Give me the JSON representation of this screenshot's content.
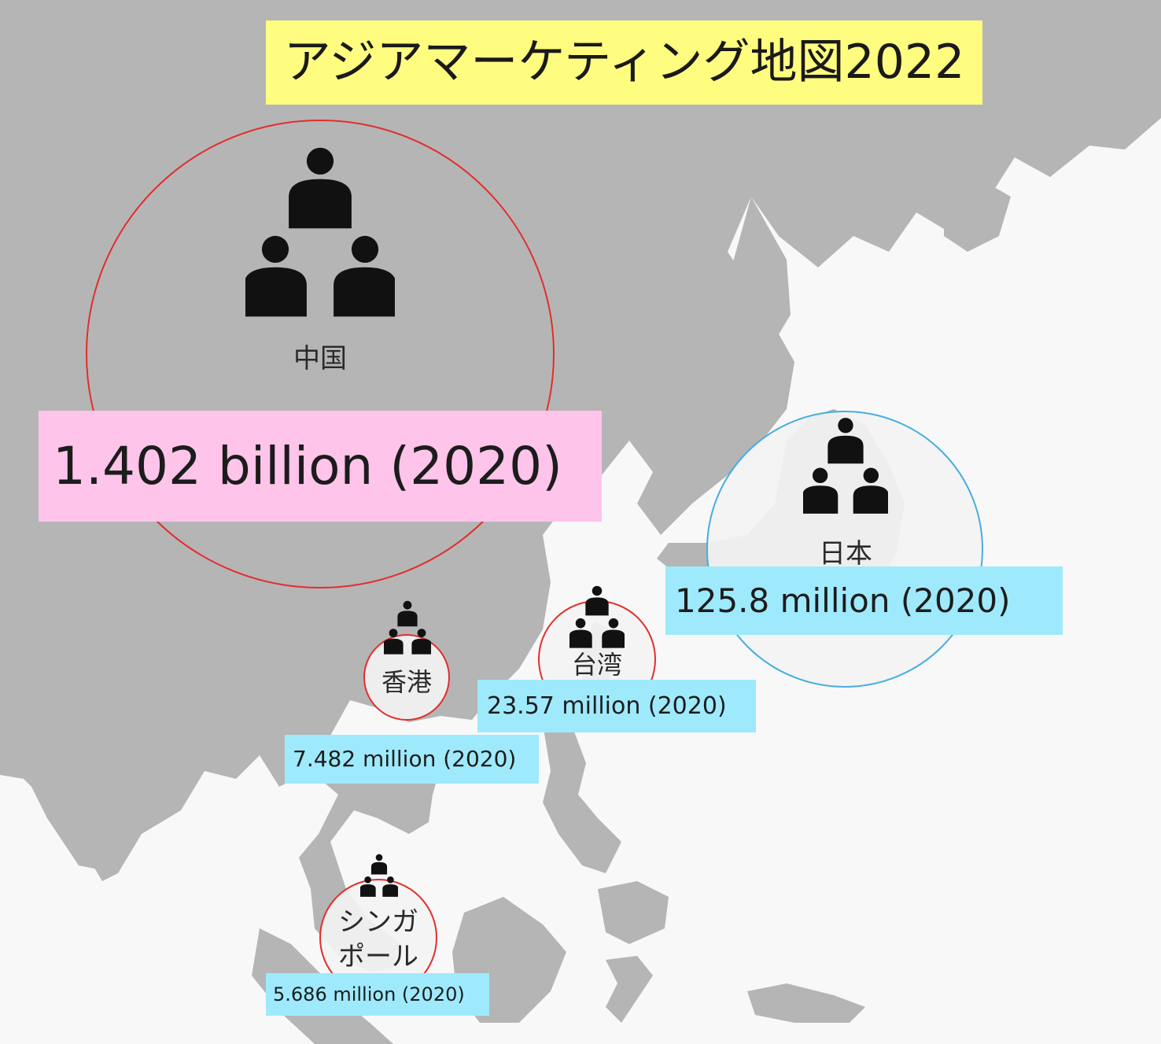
{
  "title": "アジアマーケティング地図2022",
  "icons": {
    "people": "three-people-icon",
    "region_shape": "landmass"
  },
  "colors": {
    "land": "#b5b5b5",
    "sea": "#f8f8f8",
    "title_bg": "#fffd80",
    "china_label_bg": "#ffc4ea",
    "other_label_bg": "#9eeafc",
    "ring_red": "#e32d2d",
    "ring_blue": "#46aee0"
  },
  "regions": [
    {
      "id": "china",
      "name": "中国",
      "population": "1.402 billion (2020)"
    },
    {
      "id": "japan",
      "name": "日本",
      "population": "125.8 million (2020)"
    },
    {
      "id": "taiwan",
      "name": "台湾",
      "population": "23.57 million (2020)"
    },
    {
      "id": "hongkong",
      "name": "香港",
      "population": "7.482 million (2020)"
    },
    {
      "id": "singapore",
      "name_lines": [
        "シンガ",
        "ポール"
      ],
      "population": "5.686 million (2020)"
    }
  ]
}
